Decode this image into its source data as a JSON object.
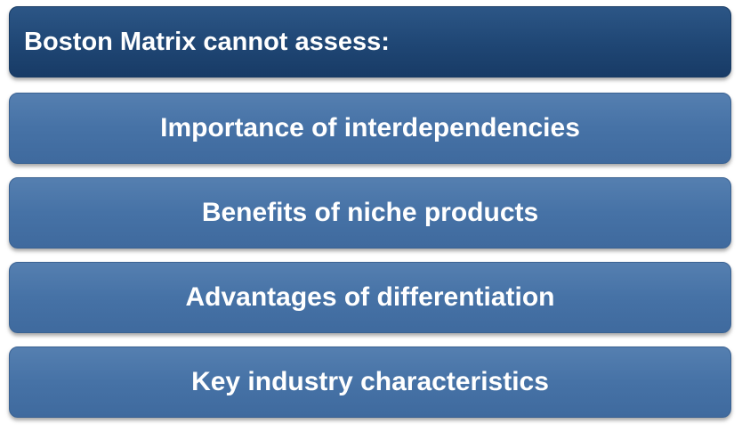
{
  "header": {
    "title": "Boston Matrix cannot assess:"
  },
  "items": [
    {
      "label": "Importance of interdependencies"
    },
    {
      "label": "Benefits of niche products"
    },
    {
      "label": "Advantages of differentiation"
    },
    {
      "label": "Key industry characteristics"
    }
  ],
  "colors": {
    "header_fill": "#1f4674",
    "item_fill": "#4672a6",
    "text": "#ffffff"
  }
}
